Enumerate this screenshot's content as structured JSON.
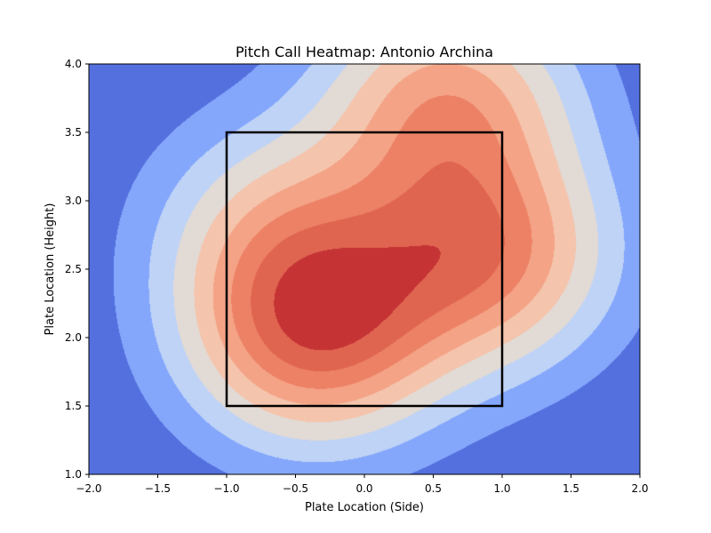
{
  "chart_data": {
    "type": "heatmap",
    "subtype": "filled-contour",
    "title": "Pitch Call Heatmap: Antonio Archina",
    "xlabel": "Plate Location (Side)",
    "ylabel": "Plate Location (Height)",
    "xlim": [
      -2.0,
      2.0
    ],
    "ylim": [
      1.0,
      4.0
    ],
    "x_ticks": [
      "−2.0",
      "−1.5",
      "−1.0",
      "−0.5",
      "0.0",
      "0.5",
      "1.0",
      "1.5",
      "2.0"
    ],
    "y_ticks": [
      "1.0",
      "1.5",
      "2.0",
      "2.5",
      "3.0",
      "3.5",
      "4.0"
    ],
    "x_tick_values": [
      -2.0,
      -1.5,
      -1.0,
      -0.5,
      0.0,
      0.5,
      1.0,
      1.5,
      2.0
    ],
    "y_tick_values": [
      1.0,
      1.5,
      2.0,
      2.5,
      3.0,
      3.5,
      4.0
    ],
    "colormap": "coolwarm",
    "contour_levels": 9,
    "level_colors": [
      "#5470de",
      "#84a7fc",
      "#bfd3f6",
      "#e2dad5",
      "#f4c4ac",
      "#f4a386",
      "#ec8165",
      "#e06550",
      "#c53334"
    ],
    "grid": false,
    "hotspots": [
      {
        "x": -0.35,
        "y": 2.05,
        "weight": 1.0
      },
      {
        "x": 0.85,
        "y": 2.6,
        "weight": 0.85
      },
      {
        "x": 0.6,
        "y": 3.7,
        "weight": 0.72
      },
      {
        "x": -0.6,
        "y": 2.8,
        "weight": 0.45
      }
    ],
    "strike_zone": {
      "x": [
        -1.0,
        1.0
      ],
      "y": [
        1.5,
        3.5
      ],
      "color": "#000000"
    }
  }
}
